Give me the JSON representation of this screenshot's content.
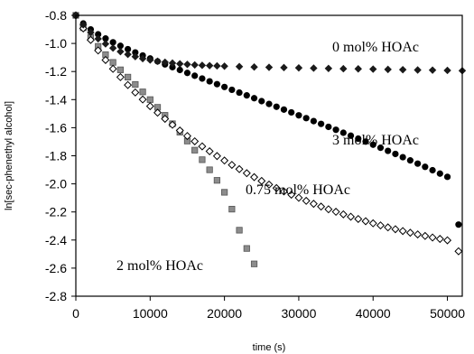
{
  "chart_data": {
    "type": "scatter",
    "xlabel": "time (s)",
    "ylabel": "ln[sec-phenethyl alcohol]",
    "xlim": [
      0,
      52000
    ],
    "ylim": [
      -2.8,
      -0.8
    ],
    "xticks": [
      0,
      10000,
      20000,
      30000,
      40000,
      50000
    ],
    "yticks": [
      -0.8,
      -1.0,
      -1.2,
      -1.4,
      -1.6,
      -1.8,
      -2.0,
      -2.2,
      -2.4,
      -2.6,
      -2.8
    ],
    "xtick_labels": [
      "0",
      "10000",
      "20000",
      "30000",
      "40000",
      "50000"
    ],
    "ytick_labels": [
      "-0.8",
      "-1.0",
      "-1.2",
      "-1.4",
      "-1.6",
      "-1.8",
      "-2.0",
      "-2.2",
      "-2.4",
      "-2.6",
      "-2.8"
    ],
    "grid": false,
    "legend": "none",
    "annotations": [
      {
        "text": "0 mol% HOAc",
        "series": "0 mol% HOAc"
      },
      {
        "text": "3 mol% HOAc",
        "series": "3 mol% HOAc"
      },
      {
        "text": "0.75 mol% HOAc",
        "series": "0.75 mol% HOAc"
      },
      {
        "text": "2 mol% HOAc",
        "series": "2 mol% HOAc"
      }
    ],
    "series": [
      {
        "name": "0 mol% HOAc",
        "marker": "diamond-filled",
        "color": "#1a1a1a",
        "x": [
          0,
          1000,
          2000,
          3000,
          4000,
          5000,
          6000,
          7000,
          8000,
          9000,
          10000,
          11000,
          12000,
          13000,
          14000,
          15000,
          16000,
          17000,
          18000,
          19000,
          20000,
          22000,
          24000,
          26000,
          28000,
          30000,
          32000,
          34000,
          36000,
          38000,
          40000,
          42000,
          44000,
          46000,
          48000,
          50000,
          52000
        ],
        "y": [
          -0.8,
          -0.867,
          -0.922,
          -0.967,
          -1.003,
          -1.033,
          -1.058,
          -1.078,
          -1.094,
          -1.108,
          -1.118,
          -1.127,
          -1.134,
          -1.14,
          -1.145,
          -1.149,
          -1.153,
          -1.156,
          -1.158,
          -1.16,
          -1.162,
          -1.165,
          -1.168,
          -1.17,
          -1.172,
          -1.174,
          -1.176,
          -1.178,
          -1.18,
          -1.181,
          -1.183,
          -1.185,
          -1.187,
          -1.189,
          -1.19,
          -1.192,
          -1.194
        ]
      },
      {
        "name": "3 mol% HOAc",
        "marker": "circle-filled",
        "color": "#000000",
        "x": [
          0,
          1000,
          2000,
          3000,
          4000,
          5000,
          6000,
          7000,
          8000,
          9000,
          10000,
          11000,
          12000,
          13000,
          14000,
          15000,
          16000,
          17000,
          18000,
          19000,
          20000,
          21000,
          22000,
          23000,
          24000,
          25000,
          26000,
          27000,
          28000,
          29000,
          30000,
          31000,
          32000,
          33000,
          34000,
          35000,
          36000,
          37000,
          38000,
          39000,
          40000,
          41000,
          42000,
          43000,
          44000,
          45000,
          46000,
          47000,
          48000,
          49000,
          50000,
          51500
        ],
        "y": [
          -0.8,
          -0.858,
          -0.9,
          -0.935,
          -0.965,
          -0.992,
          -1.017,
          -1.041,
          -1.064,
          -1.086,
          -1.107,
          -1.128,
          -1.149,
          -1.169,
          -1.189,
          -1.21,
          -1.23,
          -1.25,
          -1.27,
          -1.29,
          -1.31,
          -1.33,
          -1.35,
          -1.37,
          -1.39,
          -1.411,
          -1.431,
          -1.451,
          -1.471,
          -1.491,
          -1.512,
          -1.532,
          -1.553,
          -1.573,
          -1.594,
          -1.615,
          -1.636,
          -1.657,
          -1.678,
          -1.699,
          -1.721,
          -1.743,
          -1.765,
          -1.787,
          -1.81,
          -1.833,
          -1.856,
          -1.879,
          -1.903,
          -1.927,
          -1.95,
          -2.29
        ]
      },
      {
        "name": "0.75 mol% HOAc",
        "marker": "diamond-open",
        "color": "#000000",
        "x": [
          0,
          1000,
          2000,
          3000,
          4000,
          5000,
          6000,
          7000,
          8000,
          9000,
          10000,
          11000,
          12000,
          13000,
          14000,
          15000,
          16000,
          17000,
          18000,
          19000,
          20000,
          21000,
          22000,
          23000,
          24000,
          25000,
          26000,
          27000,
          28000,
          29000,
          30000,
          31000,
          32000,
          33000,
          34000,
          35000,
          36000,
          37000,
          38000,
          39000,
          40000,
          41000,
          42000,
          43000,
          44000,
          45000,
          46000,
          47000,
          48000,
          49000,
          50000,
          51500
        ],
        "y": [
          -0.8,
          -0.893,
          -0.975,
          -1.05,
          -1.118,
          -1.181,
          -1.24,
          -1.296,
          -1.349,
          -1.399,
          -1.447,
          -1.493,
          -1.537,
          -1.579,
          -1.62,
          -1.659,
          -1.697,
          -1.733,
          -1.768,
          -1.802,
          -1.834,
          -1.865,
          -1.895,
          -1.924,
          -1.952,
          -1.979,
          -2.005,
          -2.03,
          -2.054,
          -2.077,
          -2.099,
          -2.121,
          -2.142,
          -2.162,
          -2.181,
          -2.199,
          -2.217,
          -2.234,
          -2.25,
          -2.266,
          -2.281,
          -2.296,
          -2.31,
          -2.323,
          -2.336,
          -2.348,
          -2.36,
          -2.371,
          -2.382,
          -2.392,
          -2.402,
          -2.48
        ]
      },
      {
        "name": "2 mol% HOAc",
        "marker": "square-gray",
        "color": "#8c8c8c",
        "x": [
          0,
          1000,
          2000,
          3000,
          4000,
          5000,
          6000,
          7000,
          8000,
          9000,
          10000,
          11000,
          12000,
          13000,
          14000,
          15000,
          16000,
          17000,
          18000,
          19000,
          20000,
          21000,
          22000,
          23000,
          24000
        ],
        "y": [
          -0.8,
          -0.888,
          -0.957,
          -1.021,
          -1.08,
          -1.135,
          -1.188,
          -1.24,
          -1.292,
          -1.345,
          -1.4,
          -1.455,
          -1.512,
          -1.572,
          -1.632,
          -1.695,
          -1.76,
          -1.828,
          -1.9,
          -1.975,
          -2.06,
          -2.18,
          -2.33,
          -2.46,
          -2.57
        ]
      }
    ]
  }
}
